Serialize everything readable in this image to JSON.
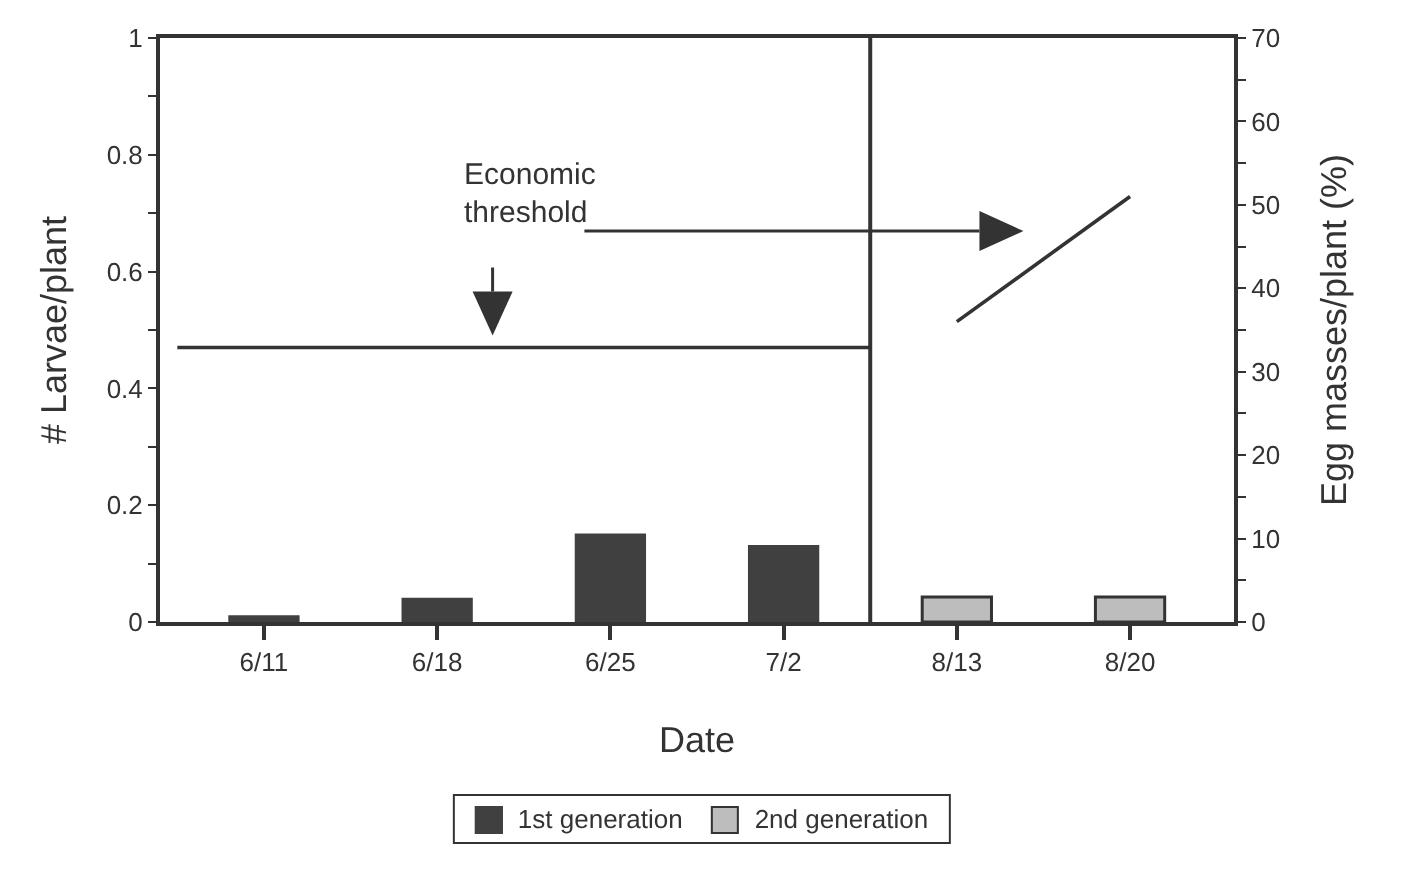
{
  "chart_data": {
    "type": "bar",
    "xlabel": "Date",
    "ylabel": "# Larvae/plant",
    "y2label": "Egg masses/plant (%)",
    "categories": [
      "6/11",
      "6/18",
      "6/25",
      "7/2",
      "8/13",
      "8/20"
    ],
    "series": [
      {
        "name": "1st generation",
        "color": "#404040",
        "values": [
          0.01,
          0.04,
          0.15,
          0.13,
          null,
          null
        ]
      },
      {
        "name": "2nd generation",
        "color": "#bdbdbd",
        "axis": "y2",
        "values": [
          null,
          null,
          null,
          null,
          3,
          3
        ]
      },
      {
        "type": "line",
        "axis": "y2",
        "color": "#333333",
        "x": [
          "8/13",
          "8/20"
        ],
        "values": [
          36,
          51
        ]
      }
    ],
    "ylim": [
      0,
      1
    ],
    "yticks": [
      0,
      {
        "value": 0.1,
        "label": null
      },
      0.2,
      {
        "value": 0.3,
        "label": null
      },
      0.4,
      {
        "value": 0.5,
        "label": null
      },
      0.6,
      {
        "value": 0.7,
        "label": null
      },
      0.8,
      {
        "value": 0.9,
        "label": null
      },
      1
    ],
    "y2lim": [
      0,
      70
    ],
    "y2ticks": [
      0,
      {
        "value": 5,
        "label": null
      },
      10,
      {
        "value": 15,
        "label": null
      },
      20,
      {
        "value": 25,
        "label": null
      },
      30,
      {
        "value": 35,
        "label": null
      },
      40,
      {
        "value": 45,
        "label": null
      },
      50,
      {
        "value": 55,
        "label": null
      },
      60,
      {
        "value": 65,
        "label": null
      },
      70
    ],
    "ref_lines": [
      {
        "axis": "y",
        "value": 0.47
      }
    ],
    "annotations": [
      "Economic threshold"
    ],
    "legend": "bottom",
    "grid": false
  }
}
